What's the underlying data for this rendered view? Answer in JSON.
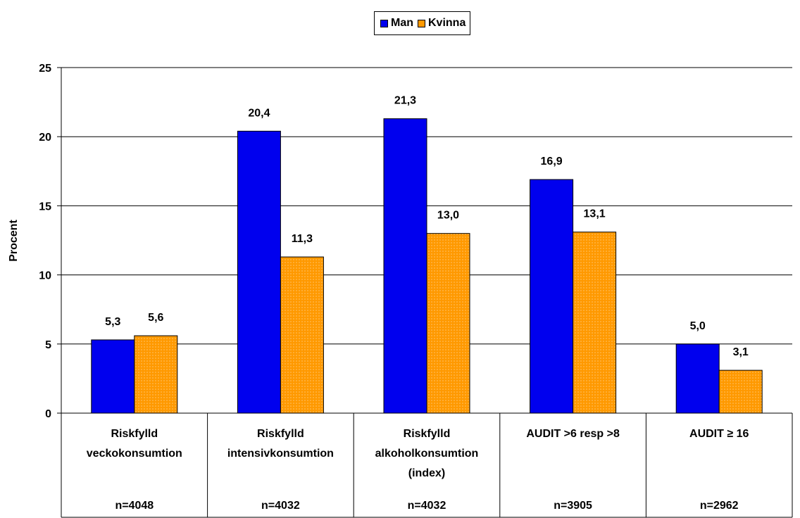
{
  "chart_data": {
    "type": "bar",
    "ylabel": "Procent",
    "ylim": [
      0,
      25
    ],
    "yticks": [
      0,
      5,
      10,
      15,
      20,
      25
    ],
    "grid": true,
    "legend_position": "top-center",
    "categories": [
      {
        "label_lines": [
          "Riskfylld",
          "veckokonsumtion"
        ],
        "n": "n=4048"
      },
      {
        "label_lines": [
          "Riskfylld",
          "intensivkonsumtion"
        ],
        "n": "n=4032"
      },
      {
        "label_lines": [
          "Riskfylld",
          "alkoholkonsumtion",
          "(index)"
        ],
        "n": "n=4032"
      },
      {
        "label_lines": [
          "AUDIT >6 resp >8"
        ],
        "n": "n=3905"
      },
      {
        "label_lines": [
          "AUDIT ≥ 16"
        ],
        "n": "n=2962"
      }
    ],
    "series": [
      {
        "name": "Man",
        "color": "#0000ee",
        "values": [
          5.3,
          20.4,
          21.3,
          16.9,
          5.0
        ],
        "labels": [
          "5,3",
          "20,4",
          "21,3",
          "16,9",
          "5,0"
        ]
      },
      {
        "name": "Kvinna",
        "color": "#ff9900",
        "pattern": "dotted",
        "values": [
          5.6,
          11.3,
          13.0,
          13.1,
          3.1
        ],
        "labels": [
          "5,6",
          "11,3",
          "13,0",
          "13,1",
          "3,1"
        ]
      }
    ]
  }
}
